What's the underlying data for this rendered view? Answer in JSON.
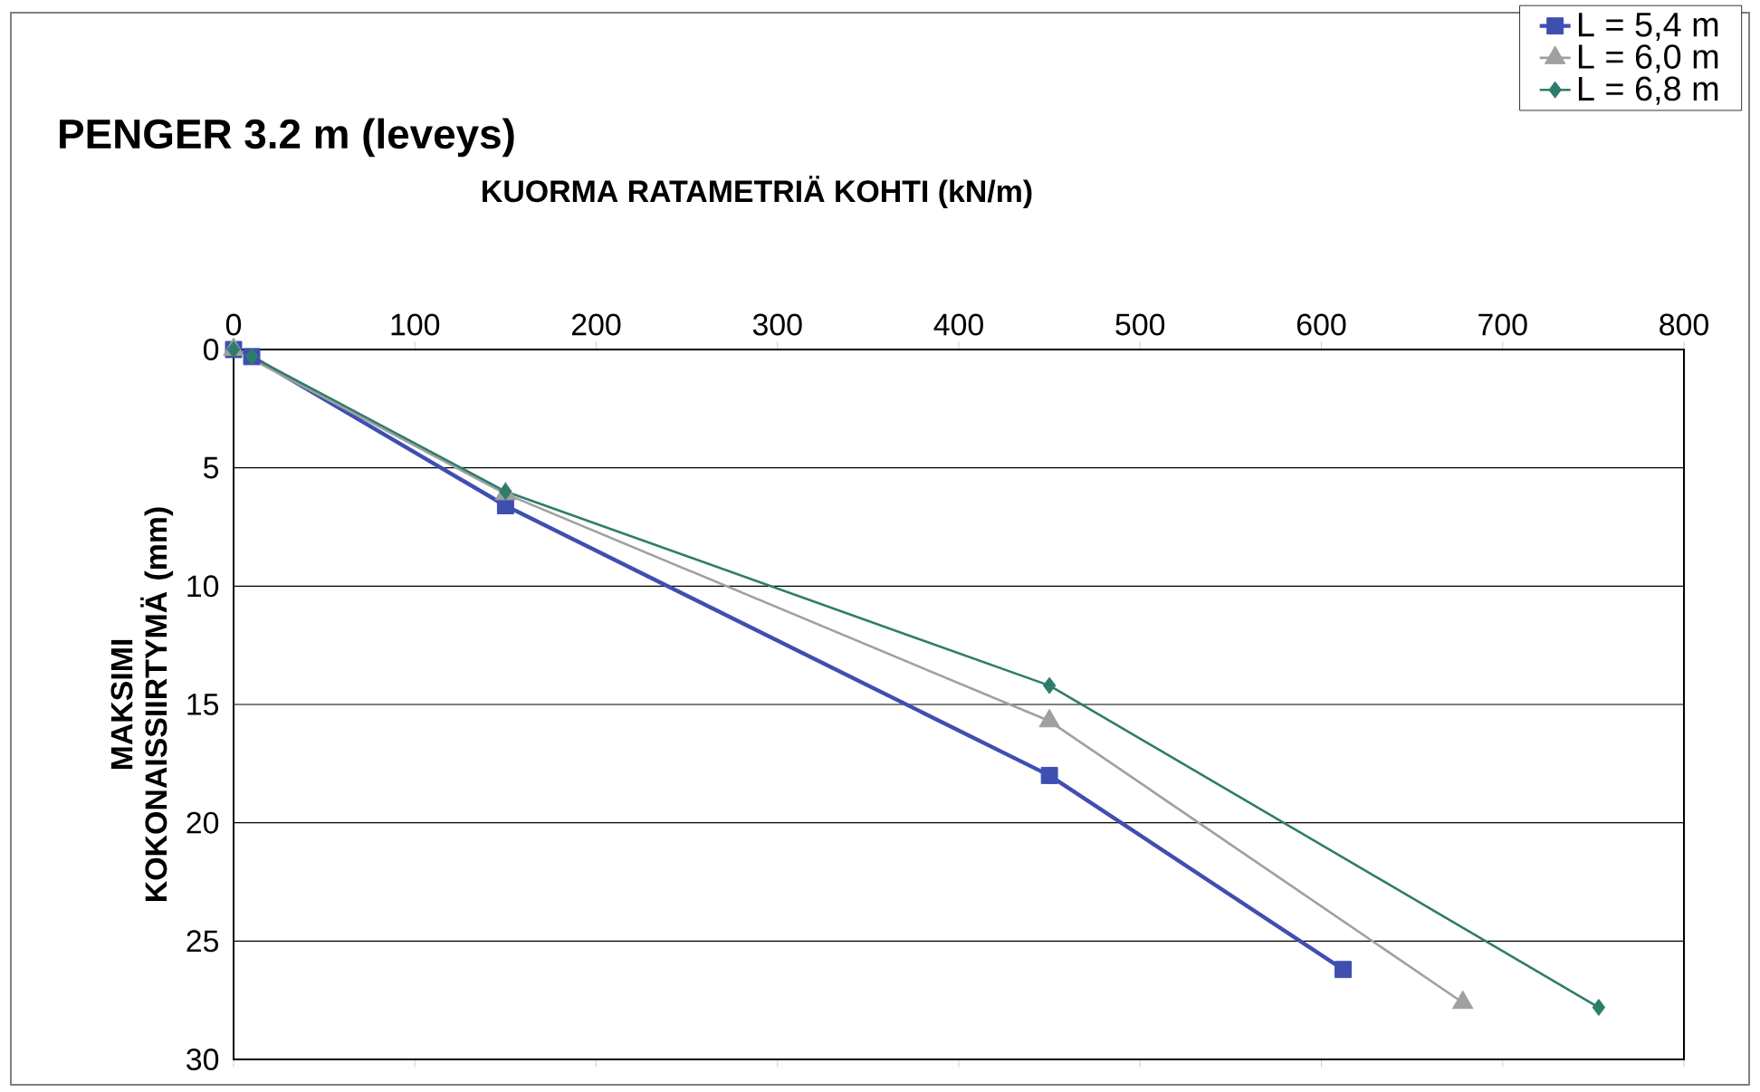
{
  "chart_data": {
    "type": "line",
    "title": "PENGER 3.2 m (leveys)",
    "xlabel": "KUORMA RATAMETRIÄ KOHTI (kN/m)",
    "ylabel": "MAKSIMI KOKONAISSIIRTYMÄ (mm)",
    "x": [
      0,
      10,
      150,
      450,
      612
    ],
    "series": [
      {
        "name": "L = 5,4 m",
        "color": "#3f4fb0",
        "marker": "square",
        "values": [
          0,
          0.3,
          6.6,
          18.0,
          26.2
        ]
      },
      {
        "name": "L = 6,0 m",
        "color": "#a0a0a0",
        "marker": "triangle",
        "x": [
          0,
          10,
          150,
          450,
          678
        ],
        "values": [
          0,
          null,
          6.1,
          15.7,
          27.6
        ]
      },
      {
        "name": "L = 6,8 m",
        "color": "#2e7d6a",
        "marker": "diamond",
        "x": [
          0,
          10,
          150,
          450,
          753
        ],
        "values": [
          0,
          0.3,
          6.0,
          14.2,
          27.8
        ]
      }
    ],
    "xlim": [
      0,
      800
    ],
    "xticks": [
      0,
      100,
      200,
      300,
      400,
      500,
      600,
      700,
      800
    ],
    "ylim": [
      30,
      0
    ],
    "yticks": [
      0,
      5,
      10,
      15,
      20,
      25,
      30
    ],
    "grid": "y",
    "legend": "top right",
    "line_style": "solid"
  }
}
